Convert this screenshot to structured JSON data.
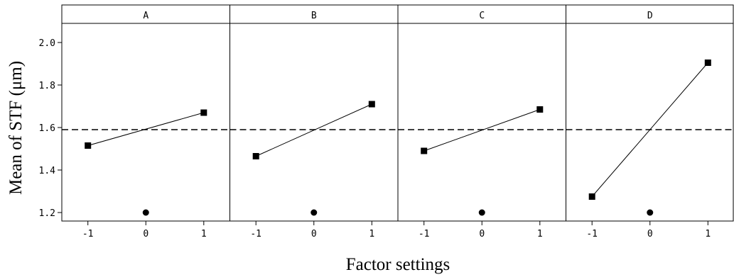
{
  "chart_data": {
    "type": "line",
    "ylabel": "Mean of STF (μm)",
    "xlabel": "Factor settings",
    "ylim": [
      1.16,
      2.09
    ],
    "yticks": [
      1.2,
      1.4,
      1.6,
      1.8,
      2.0
    ],
    "ytick_labels": [
      "1.2",
      "1.4",
      "1.6",
      "1.8",
      "2.0"
    ],
    "xlim": [
      -1.45,
      1.45
    ],
    "xticks": [
      -1,
      0,
      1
    ],
    "xtick_labels": [
      "-1",
      "0",
      "1"
    ],
    "reference_line": 1.59,
    "center_point_y": 1.2,
    "panels": [
      {
        "label": "A",
        "x": [
          -1,
          1
        ],
        "y": [
          1.515,
          1.67
        ]
      },
      {
        "label": "B",
        "x": [
          -1,
          1
        ],
        "y": [
          1.465,
          1.71
        ]
      },
      {
        "label": "C",
        "x": [
          -1,
          1
        ],
        "y": [
          1.49,
          1.685
        ]
      },
      {
        "label": "D",
        "x": [
          -1,
          1
        ],
        "y": [
          1.275,
          1.905
        ]
      }
    ],
    "grid": false,
    "colors": {
      "line": "#000000",
      "background": "#ffffff"
    }
  }
}
